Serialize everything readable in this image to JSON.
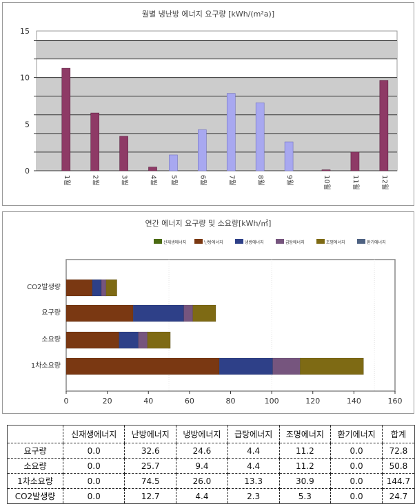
{
  "chart_data": [
    {
      "type": "bar",
      "title": "월별 냉난방 에너지 요구량 [kWh/(m²a)]",
      "categories": [
        "1월",
        "2월",
        "3월",
        "4월",
        "5월",
        "6월",
        "7월",
        "8월",
        "9월",
        "10월",
        "11월",
        "12월"
      ],
      "values": [
        11.0,
        6.2,
        3.7,
        0.4,
        1.7,
        4.4,
        8.3,
        7.3,
        3.1,
        0.1,
        2.0,
        9.7
      ],
      "bar_types": [
        "heating",
        "heating",
        "heating",
        "heating",
        "cooling",
        "cooling",
        "cooling",
        "cooling",
        "cooling",
        "heating",
        "heating",
        "heating"
      ],
      "colors": {
        "heating": "#8e3a66",
        "cooling": "#a8a8f0"
      },
      "ylim": [
        0,
        15
      ],
      "yticks": [
        0,
        5,
        10,
        15
      ],
      "grid": true,
      "xlabel": "",
      "ylabel": ""
    },
    {
      "type": "bar",
      "orientation": "horizontal",
      "stacked": true,
      "title": "연간 에너지 요구량 및 소요량[kWh/㎡]",
      "categories": [
        "CO2발생량",
        "요구량",
        "소요량",
        "1차소요량"
      ],
      "series": [
        {
          "name": "신재생에너지",
          "color": "#4a6a12",
          "values": [
            0.0,
            0.0,
            0.0,
            0.0
          ]
        },
        {
          "name": "난방에너지",
          "color": "#7a3812",
          "values": [
            12.7,
            32.6,
            25.7,
            74.5
          ]
        },
        {
          "name": "냉방에너지",
          "color": "#2e4088",
          "values": [
            4.4,
            24.6,
            9.4,
            26.0
          ]
        },
        {
          "name": "급탕에너지",
          "color": "#76557e",
          "values": [
            2.3,
            4.4,
            4.4,
            13.3
          ]
        },
        {
          "name": "조명에너지",
          "color": "#7e6a14",
          "values": [
            5.3,
            11.2,
            11.2,
            30.9
          ]
        },
        {
          "name": "환기에너지",
          "color": "#4e6282",
          "values": [
            0.0,
            0.0,
            0.0,
            0.0
          ]
        }
      ],
      "xlim": [
        0,
        160
      ],
      "xticks": [
        0,
        20,
        40,
        60,
        80,
        100,
        120,
        140,
        160
      ],
      "legend": "top-right"
    }
  ],
  "table": {
    "headers": [
      "",
      "신재생에너지",
      "난방에너지",
      "냉방에너지",
      "급탕에너지",
      "조명에너지",
      "환기에너지",
      "합계"
    ],
    "rows": [
      [
        "요구량",
        "0.0",
        "32.6",
        "24.6",
        "4.4",
        "11.2",
        "0.0",
        "72.8"
      ],
      [
        "소요량",
        "0.0",
        "25.7",
        "9.4",
        "4.4",
        "11.2",
        "0.0",
        "50.8"
      ],
      [
        "1차소요량",
        "0.0",
        "74.5",
        "26.0",
        "13.3",
        "30.9",
        "0.0",
        "144.7"
      ],
      [
        "CO2발생량",
        "0.0",
        "12.7",
        "4.4",
        "2.3",
        "5.3",
        "0.0",
        "24.7"
      ]
    ]
  }
}
